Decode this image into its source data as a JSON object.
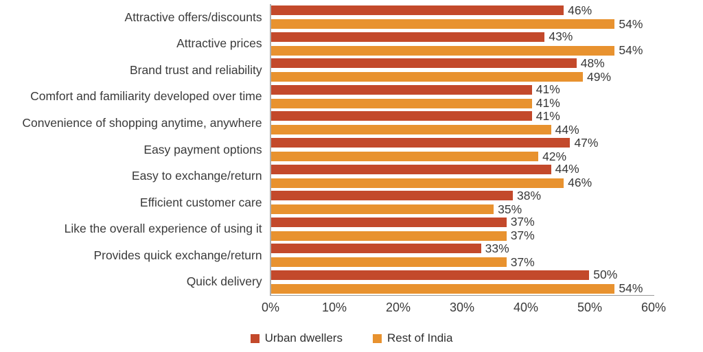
{
  "chart_data": {
    "type": "bar",
    "orientation": "horizontal",
    "title": "",
    "xlabel": "",
    "ylabel": "",
    "xlim": [
      0,
      60
    ],
    "x_ticks": [
      "0%",
      "10%",
      "20%",
      "30%",
      "40%",
      "50%",
      "60%"
    ],
    "grid": false,
    "legend_position": "bottom",
    "value_suffix": "%",
    "categories": [
      "Attractive offers/discounts",
      "Attractive prices",
      "Brand trust and reliability",
      "Comfort and familiarity developed over time",
      "Convenience of shopping anytime, anywhere",
      "Easy payment options",
      "Easy to exchange/return",
      "Efficient customer care",
      "Like the overall experience of using it",
      "Provides quick exchange/return",
      "Quick delivery"
    ],
    "series": [
      {
        "name": "Urban dwellers",
        "color": "#C3492B",
        "values": [
          46,
          43,
          48,
          41,
          41,
          47,
          44,
          38,
          37,
          33,
          50
        ],
        "labels": [
          "46%",
          "43%",
          "48%",
          "41%",
          "41%",
          "47%",
          "44%",
          "38%",
          "37%",
          "33%",
          "50%"
        ]
      },
      {
        "name": "Rest of India",
        "color": "#E8922F",
        "values": [
          54,
          54,
          49,
          41,
          44,
          42,
          46,
          35,
          37,
          37,
          54
        ],
        "labels": [
          "54%",
          "54%",
          "49%",
          "41%",
          "44%",
          "42%",
          "46%",
          "35%",
          "37%",
          "37%",
          "54%"
        ]
      }
    ],
    "colors": {
      "axis_line": "#9a9a9a",
      "plot_spine": "#aeaeae",
      "text": "#3a3a3a"
    }
  }
}
